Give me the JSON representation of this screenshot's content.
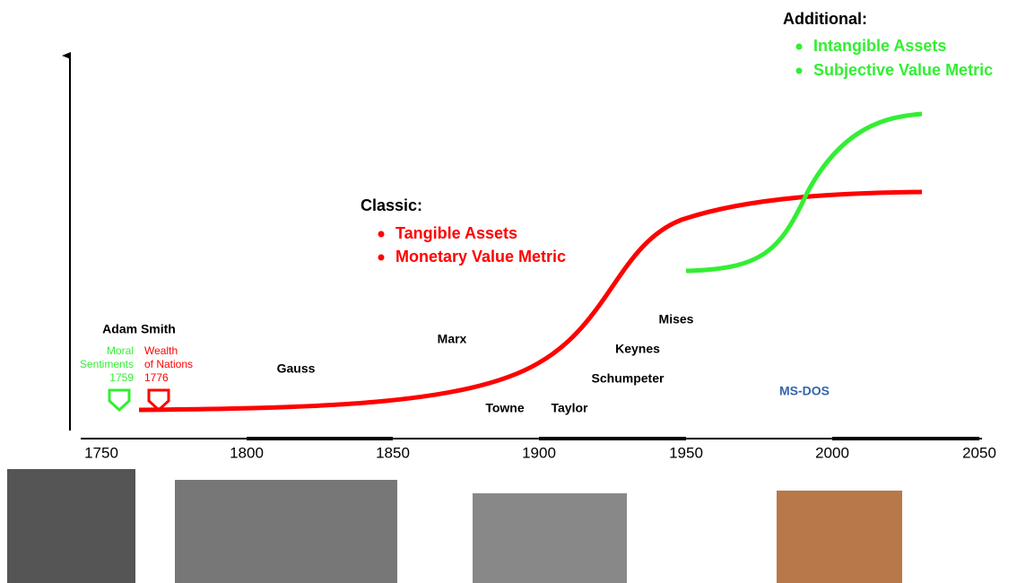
{
  "axis": {
    "ticks": [
      "1750",
      "1800",
      "1850",
      "1900",
      "1950",
      "2000",
      "2050"
    ]
  },
  "additional": {
    "heading": "Additional:",
    "items": [
      "Intangible Assets",
      "Subjective Value Metric"
    ]
  },
  "classic": {
    "heading": "Classic:",
    "items": [
      "Tangible Assets",
      "Monetary Value Metric"
    ]
  },
  "people": [
    "Adam Smith",
    "Gauss",
    "Marx",
    "Towne",
    "Taylor",
    "Schumpeter",
    "Keynes",
    "Mises"
  ],
  "markers": [
    {
      "lines": [
        "Moral",
        "Sentiments",
        "1759"
      ]
    },
    {
      "lines": [
        "Wealth",
        "of Nations",
        "1776"
      ]
    }
  ],
  "ms_dos": "MS-DOS"
}
